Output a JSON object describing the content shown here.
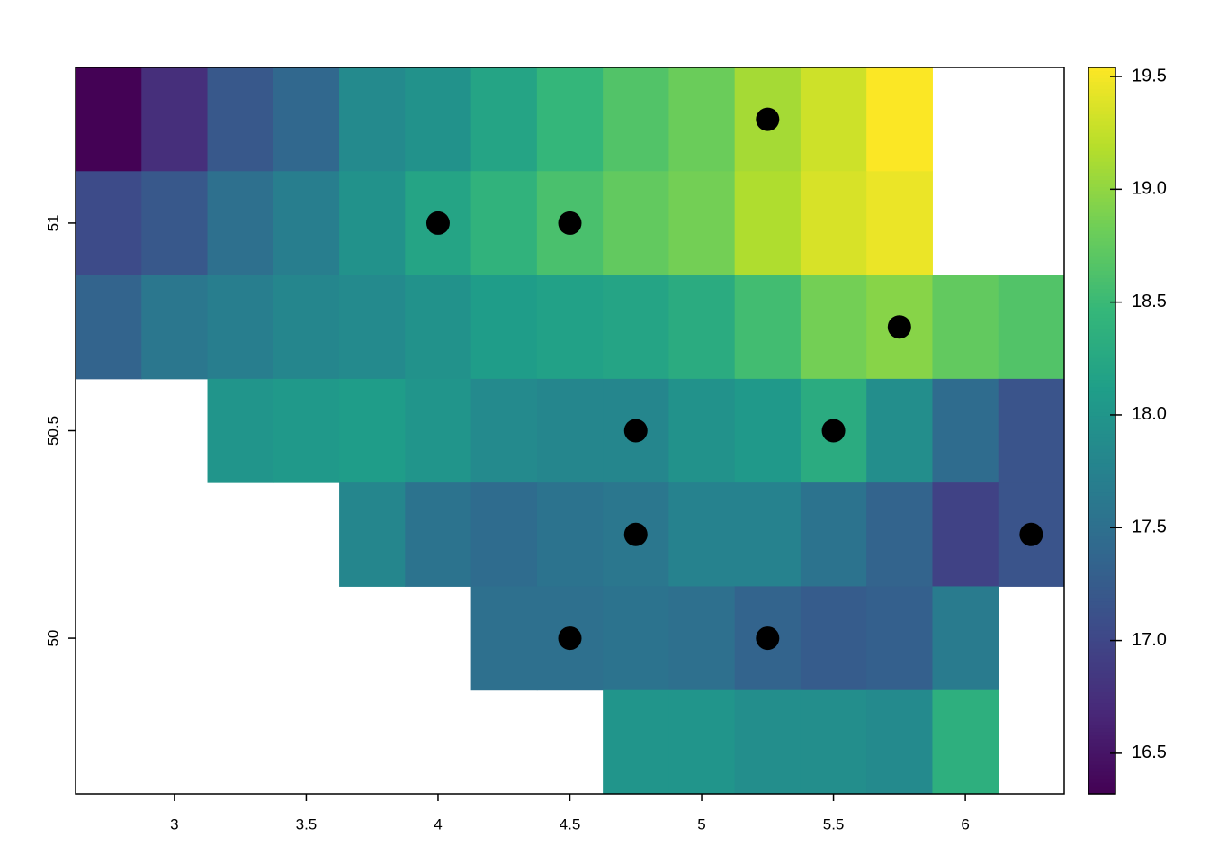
{
  "chart_data": {
    "type": "raster",
    "colormap": "viridis",
    "x": [
      2.75,
      3.0,
      3.25,
      3.5,
      3.75,
      4.0,
      4.25,
      4.5,
      4.75,
      5.0,
      5.25,
      5.5,
      5.75,
      6.0,
      6.25
    ],
    "y": [
      51.25,
      51.0,
      50.75,
      50.5,
      50.25,
      50.0,
      49.75
    ],
    "values": [
      [
        16.33,
        16.75,
        17.2,
        17.4,
        17.85,
        17.95,
        18.2,
        18.45,
        18.65,
        18.8,
        19.1,
        19.3,
        19.53,
        null,
        null
      ],
      [
        17.05,
        17.2,
        17.5,
        17.7,
        17.95,
        18.2,
        18.4,
        18.6,
        18.75,
        18.85,
        19.15,
        19.35,
        19.45,
        null,
        null
      ],
      [
        17.35,
        17.6,
        17.7,
        17.8,
        17.85,
        17.95,
        18.1,
        18.15,
        18.2,
        18.3,
        18.55,
        18.85,
        18.95,
        18.75,
        18.65
      ],
      [
        null,
        null,
        18.0,
        18.05,
        18.1,
        18.0,
        17.85,
        17.8,
        17.8,
        17.95,
        18.05,
        18.3,
        17.9,
        17.45,
        17.15
      ],
      [
        null,
        null,
        null,
        null,
        17.8,
        17.55,
        17.45,
        17.55,
        17.6,
        17.75,
        17.75,
        17.55,
        17.35,
        16.95,
        17.15
      ],
      [
        null,
        null,
        null,
        null,
        null,
        null,
        17.5,
        17.5,
        17.55,
        17.5,
        17.35,
        17.25,
        17.3,
        17.65,
        null
      ],
      [
        null,
        null,
        null,
        null,
        null,
        null,
        null,
        null,
        18.0,
        18.0,
        17.9,
        17.9,
        17.85,
        18.35,
        null
      ]
    ],
    "points": {
      "x": [
        5.25,
        4.0,
        4.5,
        5.75,
        4.75,
        5.5,
        4.75,
        6.25,
        4.5,
        5.25
      ],
      "y": [
        51.25,
        51.0,
        51.0,
        50.75,
        50.5,
        50.5,
        50.25,
        50.25,
        50.0,
        50.0
      ],
      "color": "#000000"
    },
    "xlim": [
      2.625,
      6.375
    ],
    "ylim": [
      49.625,
      51.375
    ],
    "xticks": [
      3,
      3.5,
      4,
      4.5,
      5,
      5.5,
      6
    ],
    "yticks": [
      50,
      50.5,
      51
    ],
    "zlim": [
      16.32,
      19.54
    ],
    "zticks": [
      16.5,
      {
        "value": 17,
        "label": "17.0"
      },
      17.5,
      {
        "value": 18,
        "label": "18.0"
      },
      18.5,
      {
        "value": 19,
        "label": "19.0"
      },
      19.5
    ]
  }
}
